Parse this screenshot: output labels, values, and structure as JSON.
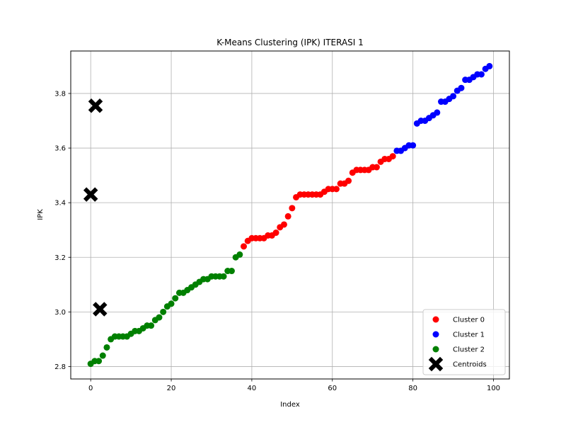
{
  "chart_data": {
    "type": "scatter",
    "title": "K-Means Clustering (IPK) ITERASI 1",
    "xlabel": "Index",
    "ylabel": "IPK",
    "xlim": [
      -4.95,
      103.95
    ],
    "ylim": [
      2.7545,
      3.9555
    ],
    "xticks": [
      0,
      20,
      40,
      60,
      80,
      100
    ],
    "yticks": [
      2.8,
      3.0,
      3.2,
      3.4,
      3.6,
      3.8
    ],
    "ytick_labels": [
      "2.8",
      "3.0",
      "3.2",
      "3.4",
      "3.6",
      "3.8"
    ],
    "grid": true,
    "legend_position": "bottom-right",
    "series": [
      {
        "name": "Cluster 0",
        "color": "#ff0000",
        "x": [
          38,
          39,
          40,
          41,
          42,
          43,
          44,
          45,
          46,
          47,
          48,
          49,
          50,
          51,
          52,
          53,
          54,
          55,
          56,
          57,
          58,
          59,
          60,
          61,
          62,
          63,
          64,
          65,
          66,
          67,
          68,
          69,
          70,
          71,
          72,
          73,
          74,
          75
        ],
        "y": [
          3.24,
          3.26,
          3.27,
          3.27,
          3.27,
          3.27,
          3.28,
          3.28,
          3.29,
          3.31,
          3.32,
          3.35,
          3.38,
          3.42,
          3.43,
          3.43,
          3.43,
          3.43,
          3.43,
          3.43,
          3.44,
          3.45,
          3.45,
          3.45,
          3.47,
          3.47,
          3.48,
          3.51,
          3.52,
          3.52,
          3.52,
          3.52,
          3.53,
          3.53,
          3.55,
          3.56,
          3.56,
          3.57
        ]
      },
      {
        "name": "Cluster 1",
        "color": "#0000ff",
        "x": [
          76,
          77,
          78,
          79,
          80,
          81,
          82,
          83,
          84,
          85,
          86,
          87,
          88,
          89,
          90,
          91,
          92,
          93,
          94,
          95,
          96,
          97,
          98,
          99
        ],
        "y": [
          3.59,
          3.59,
          3.6,
          3.61,
          3.61,
          3.69,
          3.7,
          3.7,
          3.71,
          3.72,
          3.73,
          3.77,
          3.77,
          3.78,
          3.79,
          3.81,
          3.82,
          3.85,
          3.85,
          3.86,
          3.87,
          3.87,
          3.89,
          3.9
        ]
      },
      {
        "name": "Cluster 2",
        "color": "#008000",
        "x": [
          0,
          1,
          2,
          3,
          4,
          5,
          6,
          7,
          8,
          9,
          10,
          11,
          12,
          13,
          14,
          15,
          16,
          17,
          18,
          19,
          20,
          21,
          22,
          23,
          24,
          25,
          26,
          27,
          28,
          29,
          30,
          31,
          32,
          33,
          34,
          35,
          36,
          37
        ],
        "y": [
          2.81,
          2.82,
          2.82,
          2.84,
          2.87,
          2.9,
          2.91,
          2.91,
          2.91,
          2.91,
          2.92,
          2.93,
          2.93,
          2.94,
          2.95,
          2.95,
          2.97,
          2.98,
          3.0,
          3.02,
          3.03,
          3.05,
          3.07,
          3.07,
          3.08,
          3.09,
          3.1,
          3.11,
          3.12,
          3.12,
          3.13,
          3.13,
          3.13,
          3.13,
          3.15,
          3.15,
          3.2,
          3.21
        ]
      }
    ],
    "centroids": {
      "name": "Centroids",
      "color": "#000000",
      "x": [
        1.2,
        0.0,
        2.3
      ],
      "y": [
        3.755,
        3.43,
        3.01
      ]
    }
  }
}
